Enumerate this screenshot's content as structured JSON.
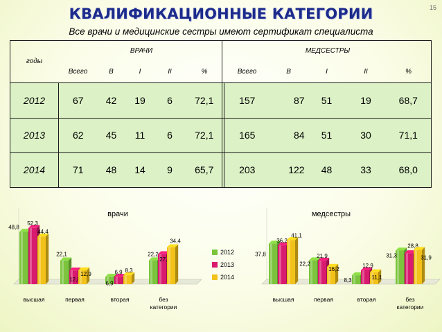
{
  "page_number": "15",
  "title": "КВАЛИФИКАЦИОННЫЕ КАТЕГОРИИ",
  "subtitle": "Все врачи и медицинские сестры имеют сертификат специалиста",
  "table": {
    "years_header": "годы",
    "doctors_header": "ВРАЧИ",
    "nurses_header": "МЕДСЕСТРЫ",
    "sub_headers": [
      "Всего",
      "В",
      "I",
      "II",
      "%"
    ],
    "rows": [
      {
        "year": "2012",
        "doctors": [
          "67",
          "42",
          "19",
          "6",
          "72,1"
        ],
        "nurses": [
          "157",
          "87",
          "51",
          "19",
          "68,7"
        ]
      },
      {
        "year": "2013",
        "doctors": [
          "62",
          "45",
          "11",
          "6",
          "72,1"
        ],
        "nurses": [
          "165",
          "84",
          "51",
          "30",
          "71,1"
        ]
      },
      {
        "year": "2014",
        "doctors": [
          "71",
          "48",
          "14",
          "9",
          "65,7"
        ],
        "nurses": [
          "203",
          "122",
          "48",
          "33",
          "68,0"
        ]
      }
    ]
  },
  "colors": {
    "2012": "#7cc43d",
    "2013": "#d81b6e",
    "2014": "#f2c21a"
  },
  "chart_data": [
    {
      "type": "bar",
      "title": "врачи",
      "categories": [
        "высшая",
        "первая",
        "вторая",
        "без\nкатегории"
      ],
      "series": [
        {
          "name": "2012",
          "values": [
            48.8,
            22.1,
            6.9,
            22.2
          ],
          "labels": [
            "48,8",
            "22,1",
            "6,9",
            "22,2"
          ]
        },
        {
          "name": "2013",
          "values": [
            52.3,
            12.8,
            6.9,
            27.9
          ],
          "labels": [
            "52,3",
            "12,8",
            "6,9",
            "27,9"
          ]
        },
        {
          "name": "2014",
          "values": [
            44.4,
            12.9,
            8.3,
            34.4
          ],
          "labels": [
            "44,4",
            "12,9",
            "8,3",
            "34,4"
          ]
        }
      ],
      "legend": [
        "2012",
        "2013",
        "2014"
      ],
      "legend_position": "right"
    },
    {
      "type": "bar",
      "title": "медсестры",
      "categories": [
        "высшая",
        "первая",
        "вторая",
        "без\nкатегории"
      ],
      "series": [
        {
          "name": "2012",
          "values": [
            37.8,
            22.2,
            8.3,
            31.3
          ],
          "labels": [
            "37,8",
            "22,2",
            "8,3",
            "31,3"
          ]
        },
        {
          "name": "2013",
          "values": [
            36.2,
            21.9,
            12.9,
            28.8
          ],
          "labels": [
            "36,2",
            "21,9",
            "12,9",
            "28,8"
          ]
        },
        {
          "name": "2014",
          "values": [
            41.1,
            16.2,
            11.1,
            31.9
          ],
          "labels": [
            "41,1",
            "16,2",
            "11,1",
            "31,9"
          ]
        }
      ]
    }
  ]
}
